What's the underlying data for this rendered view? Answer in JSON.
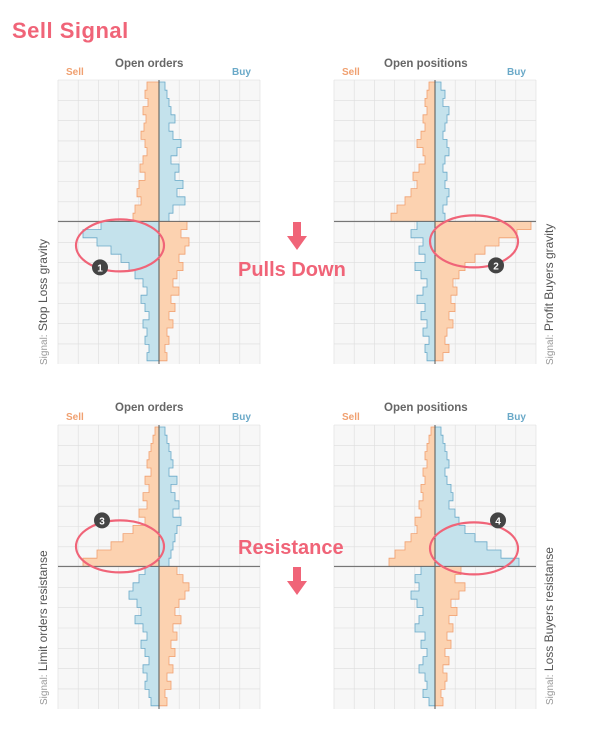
{
  "title": "Sell Signal",
  "colors": {
    "accent": "#f06478",
    "sell_fill": "#fcd2b0",
    "sell_line": "#f0a070",
    "buy_fill": "#c4e2ec",
    "buy_line": "#6aa9c8",
    "grid": "#dddddd"
  },
  "labels": {
    "pulls_down": "Pulls Down",
    "resistance": "Resistance",
    "signal_prefix": "Signal:"
  },
  "panels": [
    {
      "id": "top-left",
      "header": "Open orders",
      "sell": "Sell",
      "buy": "Buy",
      "signal_text": "Stop Loss gravity",
      "badge": "1",
      "icons": [
        "down-arrow-icon"
      ]
    },
    {
      "id": "top-right",
      "header": "Open positions",
      "sell": "Sell",
      "buy": "Buy",
      "signal_text": "Profit Buyers gravity",
      "badge": "2"
    },
    {
      "id": "bottom-left",
      "header": "Open orders",
      "sell": "Sell",
      "buy": "Buy",
      "signal_text": "Limit orders resistanse",
      "badge": "3"
    },
    {
      "id": "bottom-right",
      "header": "Open positions",
      "sell": "Sell",
      "buy": "Buy",
      "signal_text": "Loss Buyers resistanse",
      "badge": "4"
    }
  ]
}
